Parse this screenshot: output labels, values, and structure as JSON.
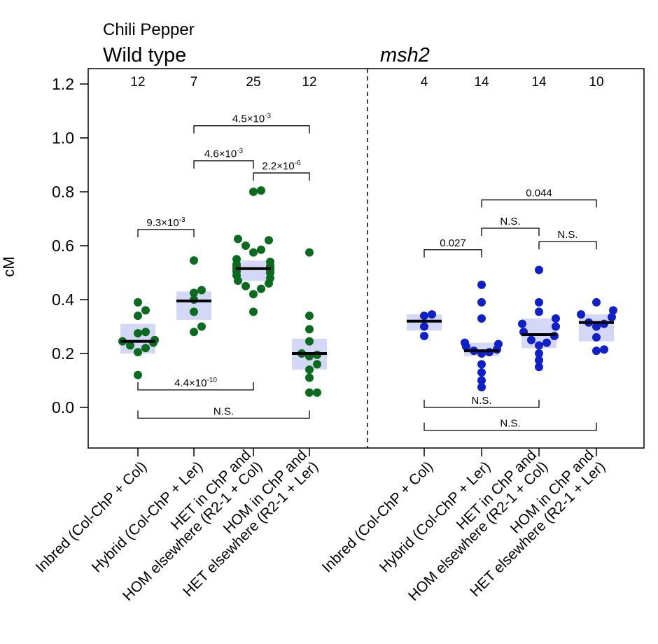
{
  "chart_data": {
    "type": "scatter",
    "supertitle": "Chili Pepper",
    "ylabel": "cM",
    "ylim": [
      -0.15,
      1.25
    ],
    "yticks": [
      "0.0",
      "0.2",
      "0.4",
      "0.6",
      "0.8",
      "1.0",
      "1.2"
    ],
    "yticks_values": [
      0.0,
      0.2,
      0.4,
      0.6,
      0.8,
      1.0,
      1.2
    ],
    "colors": {
      "wt": "#0a6b1f",
      "msh2": "#1020c8",
      "iqr_fill": "#d4d8f6",
      "median": "#000000"
    },
    "panels": [
      {
        "title": "Wild type",
        "title_italic": false,
        "series_color_key": "wt",
        "groups": [
          {
            "label": [
              "Inbred (Col-ChP + Col)"
            ],
            "n": "12",
            "median": 0.245,
            "q1": 0.2,
            "q3": 0.31,
            "points": [
              0.39,
              0.36,
              0.34,
              0.28,
              0.275,
              0.25,
              0.245,
              0.24,
              0.23,
              0.22,
              0.205,
              0.12
            ]
          },
          {
            "label": [
              "Hybrid (Col-ChP + Ler)"
            ],
            "n": "7",
            "median": 0.395,
            "q1": 0.325,
            "q3": 0.43,
            "points": [
              0.545,
              0.435,
              0.425,
              0.4,
              0.355,
              0.3,
              0.28
            ]
          },
          {
            "label": [
              "HET in ChP and",
              "HOM elsewhere (R2-1 + Col)"
            ],
            "n": "25",
            "median": 0.515,
            "q1": 0.47,
            "q3": 0.545,
            "points": [
              0.805,
              0.8,
              0.625,
              0.62,
              0.6,
              0.585,
              0.575,
              0.55,
              0.54,
              0.53,
              0.525,
              0.52,
              0.52,
              0.515,
              0.51,
              0.505,
              0.5,
              0.49,
              0.48,
              0.47,
              0.46,
              0.45,
              0.44,
              0.42,
              0.355
            ]
          },
          {
            "label": [
              "HOM in ChP and",
              "HET elsewhere (R2-1 + Ler)"
            ],
            "n": "12",
            "median": 0.2,
            "q1": 0.14,
            "q3": 0.255,
            "points": [
              0.575,
              0.34,
              0.29,
              0.245,
              0.2,
              0.195,
              0.19,
              0.16,
              0.14,
              0.11,
              0.055,
              0.055
            ]
          }
        ],
        "comparisons": [
          {
            "from": 1,
            "to": 3,
            "y": 1.045,
            "dir": "down",
            "text": "4.5×10",
            "sup": "-3"
          },
          {
            "from": 1,
            "to": 2,
            "y": 0.915,
            "dir": "down",
            "text": "4.6×10",
            "sup": "-3"
          },
          {
            "from": 2,
            "to": 3,
            "y": 0.87,
            "dir": "down",
            "text": "2.2×10",
            "sup": "-6"
          },
          {
            "from": 0,
            "to": 1,
            "y": 0.66,
            "dir": "down",
            "text": "9.3×10",
            "sup": "-3"
          },
          {
            "from": 0,
            "to": 2,
            "y": 0.065,
            "dir": "up",
            "text": "4.4×10",
            "sup": "-10"
          },
          {
            "from": 0,
            "to": 3,
            "y": -0.04,
            "dir": "up",
            "text": "N.S.",
            "sup": ""
          }
        ]
      },
      {
        "title": "msh2",
        "title_italic": true,
        "series_color_key": "msh2",
        "groups": [
          {
            "label": [
              "Inbred (Col-ChP + Col)"
            ],
            "n": "4",
            "median": 0.32,
            "q1": 0.285,
            "q3": 0.345,
            "points": [
              0.345,
              0.34,
              0.3,
              0.265
            ]
          },
          {
            "label": [
              "Hybrid (Col-ChP + Ler)"
            ],
            "n": "14",
            "median": 0.21,
            "q1": 0.19,
            "q3": 0.24,
            "points": [
              0.455,
              0.39,
              0.33,
              0.24,
              0.235,
              0.225,
              0.215,
              0.21,
              0.205,
              0.2,
              0.16,
              0.13,
              0.1,
              0.075
            ]
          },
          {
            "label": [
              "HET in ChP and",
              "HOM elsewhere (R2-1 + Col)"
            ],
            "n": "14",
            "median": 0.27,
            "q1": 0.22,
            "q3": 0.33,
            "points": [
              0.51,
              0.39,
              0.355,
              0.33,
              0.31,
              0.3,
              0.28,
              0.265,
              0.25,
              0.24,
              0.23,
              0.2,
              0.175,
              0.15
            ]
          },
          {
            "label": [
              "HOM in ChP and",
              "HET elsewhere (R2-1 + Ler)"
            ],
            "n": "10",
            "median": 0.315,
            "q1": 0.245,
            "q3": 0.345,
            "points": [
              0.39,
              0.36,
              0.345,
              0.335,
              0.315,
              0.31,
              0.3,
              0.26,
              0.215,
              0.21
            ]
          }
        ],
        "comparisons": [
          {
            "from": 1,
            "to": 3,
            "y": 0.77,
            "dir": "down",
            "text": "0.044",
            "sup": ""
          },
          {
            "from": 1,
            "to": 2,
            "y": 0.665,
            "dir": "down",
            "text": "N.S.",
            "sup": ""
          },
          {
            "from": 2,
            "to": 3,
            "y": 0.615,
            "dir": "down",
            "text": "N.S.",
            "sup": ""
          },
          {
            "from": 0,
            "to": 1,
            "y": 0.585,
            "dir": "down",
            "text": "0.027",
            "sup": ""
          },
          {
            "from": 0,
            "to": 2,
            "y": 0.0,
            "dir": "up",
            "text": "N.S.",
            "sup": ""
          },
          {
            "from": 0,
            "to": 3,
            "y": -0.085,
            "dir": "up",
            "text": "N.S.",
            "sup": ""
          }
        ]
      }
    ]
  }
}
